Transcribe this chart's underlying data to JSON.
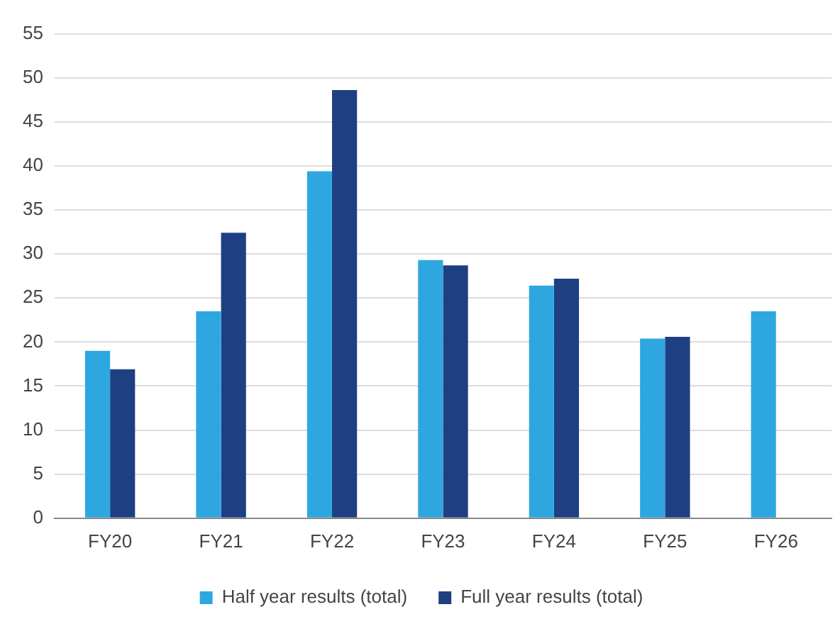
{
  "chart_data": {
    "type": "bar",
    "categories": [
      "FY20",
      "FY21",
      "FY22",
      "FY23",
      "FY24",
      "FY25",
      "FY26"
    ],
    "series": [
      {
        "name": "Half year results (total)",
        "color": "#2ea7e0",
        "values": [
          19.0,
          23.5,
          39.4,
          29.3,
          26.4,
          20.4,
          23.5
        ]
      },
      {
        "name": "Full year results (total)",
        "color": "#1f3f83",
        "values": [
          16.9,
          32.4,
          48.6,
          28.7,
          27.2,
          20.6,
          null
        ]
      }
    ],
    "ylim": [
      0,
      55
    ],
    "yticks": [
      0,
      5,
      10,
      15,
      20,
      25,
      30,
      35,
      40,
      45,
      50,
      55
    ],
    "grid": "y",
    "legend": "bottom"
  }
}
